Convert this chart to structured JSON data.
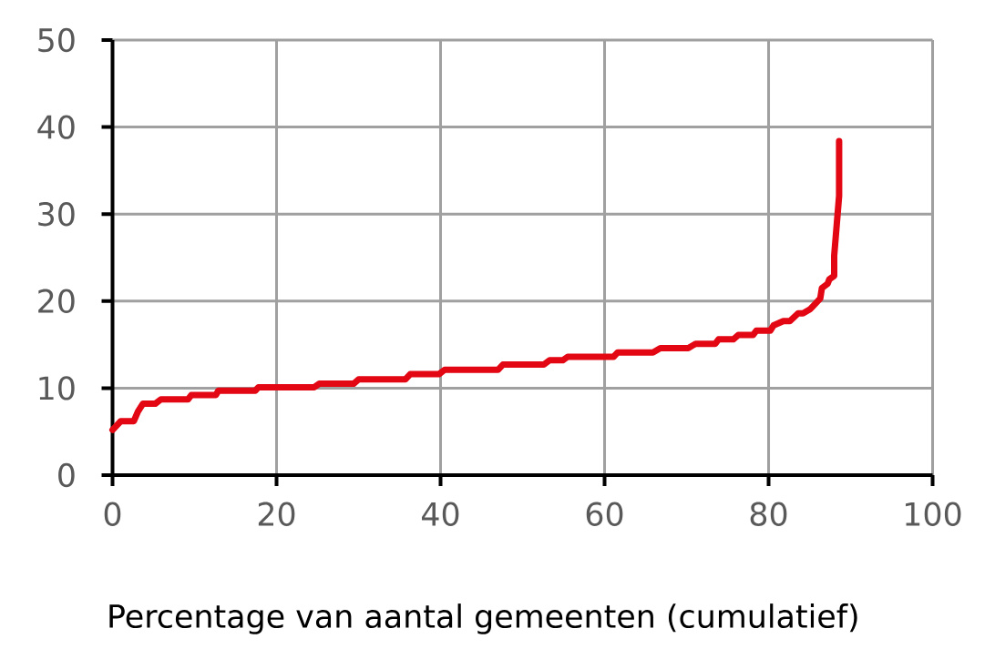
{
  "chart_data": {
    "type": "line",
    "xlabel": "Percentage van aantal gemeenten (cumulatief)",
    "x": [
      0,
      1.0,
      2.6,
      3.1,
      3.7,
      5.2,
      5.9,
      9.2,
      9.6,
      12.6,
      12.9,
      17.4,
      17.8,
      24.6,
      25.2,
      29.4,
      30.0,
      35.7,
      36.3,
      39.8,
      40.5,
      47.0,
      47.6,
      52.6,
      53.3,
      54.9,
      55.5,
      61.1,
      61.6,
      65.9,
      66.8,
      70.2,
      71.1,
      73.5,
      73.9,
      75.7,
      76.3,
      78.1,
      78.5,
      80.2,
      80.6,
      81.8,
      82.6,
      83.6,
      84.2,
      85.1,
      85.5,
      86.3,
      86.5,
      87.2,
      87.4,
      88.0,
      88.0,
      88.6,
      88.6
    ],
    "values": [
      5.2,
      6.2,
      6.2,
      7.3,
      8.2,
      8.2,
      8.7,
      8.7,
      9.2,
      9.2,
      9.7,
      9.7,
      10.1,
      10.1,
      10.5,
      10.5,
      11.0,
      11.0,
      11.6,
      11.6,
      12.1,
      12.1,
      12.7,
      12.7,
      13.2,
      13.2,
      13.6,
      13.6,
      14.1,
      14.1,
      14.6,
      14.6,
      15.1,
      15.1,
      15.6,
      15.6,
      16.1,
      16.1,
      16.6,
      16.6,
      17.2,
      17.7,
      17.7,
      18.6,
      18.6,
      19.1,
      19.5,
      20.3,
      21.5,
      22.0,
      22.5,
      22.9,
      25.2,
      32.1,
      38.4
    ],
    "color": "#e30613",
    "line_style": "solid",
    "xlim": [
      0,
      100
    ],
    "ylim": [
      0,
      50
    ],
    "xticks": [
      0,
      20,
      40,
      60,
      80,
      100
    ],
    "yticks": [
      0,
      10,
      20,
      30,
      40,
      50
    ],
    "grid": true
  }
}
